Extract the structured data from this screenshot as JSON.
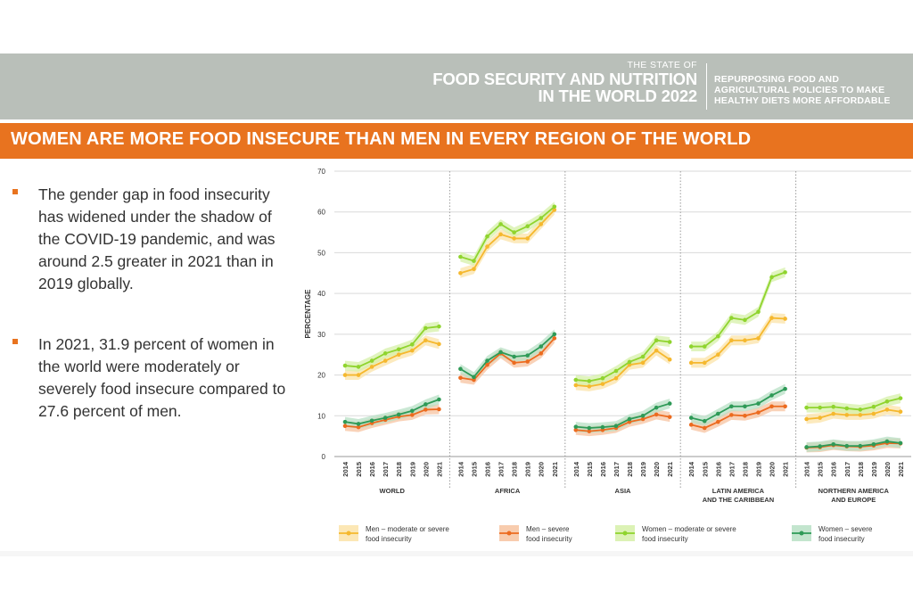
{
  "header": {
    "report_line1": "THE STATE OF",
    "report_line2": "FOOD SECURITY AND NUTRITION",
    "report_line3": "IN THE WORLD 2022",
    "tagline_line1": "REPURPOSING FOOD AND",
    "tagline_line2": "AGRICULTURAL POLICIES TO MAKE",
    "tagline_line3": "HEALTHY DIETS MORE AFFORDABLE"
  },
  "title": "WOMEN ARE MORE FOOD INSECURE THAN MEN IN EVERY REGION OF THE WORLD",
  "bullets": [
    "The gender gap in food insecurity has widened under the shadow of the COVID-19 pandemic, and was around 2.5 greater in 2021 than in 2019 globally.",
    "In 2021, 31.9 percent of women in the world were moderately or severely food insecure compared to 27.6 percent of men."
  ],
  "colors": {
    "header_band": "#b9bfb9",
    "accent_orange": "#e8731f",
    "men_moderate": "#f5b82e",
    "men_severe": "#ec6b1f",
    "women_moderate": "#8fd42e",
    "women_severe": "#2e9a57"
  },
  "chart_data": {
    "type": "line",
    "ylabel": "PERCENTAGE",
    "ylim": [
      0,
      70
    ],
    "yticks": [
      0,
      10,
      20,
      30,
      40,
      50,
      60,
      70
    ],
    "years": [
      "2014",
      "2015",
      "2016",
      "2017",
      "2018",
      "2019",
      "2020",
      "2021"
    ],
    "legend": [
      "Men – moderate or severe food insecurity",
      "Men – severe food insecurity",
      "Women – moderate or severe food insecurity",
      "Women – severe food insecurity"
    ],
    "legend_placement": "bottom",
    "panels": [
      {
        "label_lines": [
          "WORLD"
        ],
        "series": [
          {
            "name": "Men – moderate or severe food insecurity",
            "values": [
              20,
              20,
              22,
              23.5,
              25,
              26,
              28.5,
              27.6
            ]
          },
          {
            "name": "Men – severe food insecurity",
            "values": [
              7.5,
              7.2,
              8.2,
              9,
              9.8,
              10.2,
              11.5,
              11.6
            ]
          },
          {
            "name": "Women – moderate or severe food insecurity",
            "values": [
              22.3,
              22,
              23.5,
              25.3,
              26.3,
              27.5,
              31.5,
              31.9
            ]
          },
          {
            "name": "Women – severe food insecurity",
            "values": [
              8.5,
              8,
              8.8,
              9.5,
              10.3,
              11.2,
              12.8,
              14
            ]
          }
        ]
      },
      {
        "label_lines": [
          "AFRICA"
        ],
        "series": [
          {
            "name": "Men – moderate or severe food insecurity",
            "values": [
              45,
              46,
              51.5,
              54.5,
              53.5,
              53.5,
              57,
              60.5
            ]
          },
          {
            "name": "Men – severe food insecurity",
            "values": [
              19.3,
              18.8,
              22.5,
              25.3,
              23,
              23.3,
              25.3,
              29
            ]
          },
          {
            "name": "Women – moderate or severe food insecurity",
            "values": [
              49,
              48,
              54,
              57,
              55,
              56.5,
              58.5,
              61.3
            ]
          },
          {
            "name": "Women – severe food insecurity",
            "values": [
              21.5,
              19.5,
              23.5,
              25.6,
              24.5,
              24.8,
              27,
              30
            ]
          }
        ]
      },
      {
        "label_lines": [
          "ASIA"
        ],
        "series": [
          {
            "name": "Men – moderate or severe food insecurity",
            "values": [
              17.5,
              17.2,
              17.8,
              19.2,
              22.5,
              23,
              26,
              23.8
            ]
          },
          {
            "name": "Men – severe food insecurity",
            "values": [
              6.5,
              6.2,
              6.5,
              7,
              8.5,
              9.2,
              10.3,
              9.7
            ]
          },
          {
            "name": "Women – moderate or severe food insecurity",
            "values": [
              18.8,
              18.5,
              19.2,
              21,
              23.2,
              24.5,
              28.5,
              28.1
            ]
          },
          {
            "name": "Women – severe food insecurity",
            "values": [
              7.3,
              7,
              7.2,
              7.5,
              9.2,
              10,
              12,
              13
            ]
          }
        ]
      },
      {
        "label_lines": [
          "LATIN AMERICA",
          "AND THE CARIBBEAN"
        ],
        "series": [
          {
            "name": "Men – moderate or severe food insecurity",
            "values": [
              23,
              23,
              25,
              28.5,
              28.5,
              29,
              34,
              33.8
            ]
          },
          {
            "name": "Men – severe food insecurity",
            "values": [
              7.8,
              7,
              8.5,
              10.2,
              10,
              10.8,
              12.3,
              12.3
            ]
          },
          {
            "name": "Women – moderate or severe food insecurity",
            "values": [
              27,
              27,
              29.5,
              34,
              33.5,
              35.5,
              44,
              45.2
            ]
          },
          {
            "name": "Women – severe food insecurity",
            "values": [
              9.5,
              8.7,
              10.5,
              12.3,
              12.3,
              13,
              15,
              16.6
            ]
          }
        ]
      },
      {
        "label_lines": [
          "NORTHERN AMERICA",
          "AND EUROPE"
        ],
        "series": [
          {
            "name": "Men – moderate or severe food insecurity",
            "values": [
              9.2,
              9.5,
              10.5,
              10.2,
              10.2,
              10.5,
              11.5,
              11
            ]
          },
          {
            "name": "Men – severe food insecurity",
            "values": [
              2.2,
              2.3,
              2.8,
              2.5,
              2.4,
              2.7,
              3.3,
              3.2
            ]
          },
          {
            "name": "Women – moderate or severe food insecurity",
            "values": [
              12,
              12,
              12.2,
              11.8,
              11.5,
              12.2,
              13.5,
              14.3
            ]
          },
          {
            "name": "Women – severe food insecurity",
            "values": [
              2.3,
              2.5,
              3,
              2.6,
              2.6,
              3,
              3.7,
              3.3
            ]
          }
        ]
      }
    ]
  }
}
